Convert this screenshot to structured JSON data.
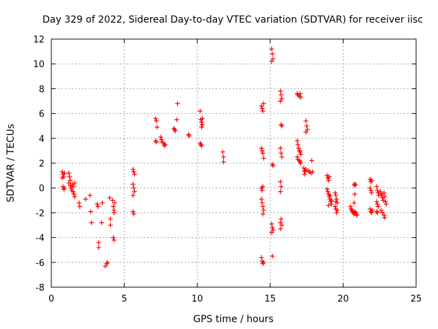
{
  "chart_data": {
    "type": "scatter",
    "title": "Day 329 of 2022, Sidereal Day-to-day VTEC variation (SDTVAR) for receiver iisc",
    "xlabel": "GPS time / hours",
    "ylabel": "SDTVAR / TECUs",
    "xlim": [
      0,
      25
    ],
    "ylim": [
      -8,
      12
    ],
    "xticks": [
      0,
      5,
      10,
      15,
      20,
      25
    ],
    "yticks": [
      -8,
      -6,
      -4,
      -2,
      0,
      2,
      4,
      6,
      8,
      10,
      12
    ],
    "grid": true,
    "marker": "+",
    "marker_color": "#ff0000",
    "series": [
      {
        "name": "SDTVAR",
        "points": [
          [
            0.75,
            1.3
          ],
          [
            0.8,
            1.1
          ],
          [
            0.85,
            0.9
          ],
          [
            0.75,
            0.8
          ],
          [
            0.9,
            1.2
          ],
          [
            0.8,
            0.1
          ],
          [
            0.85,
            -0.1
          ],
          [
            0.9,
            0.0
          ],
          [
            1.2,
            1.2
          ],
          [
            1.25,
            0.9
          ],
          [
            1.3,
            0.6
          ],
          [
            1.2,
            0.4
          ],
          [
            1.3,
            0.2
          ],
          [
            1.35,
            0.0
          ],
          [
            1.4,
            -0.2
          ],
          [
            1.45,
            0.3
          ],
          [
            1.5,
            0.1
          ],
          [
            1.5,
            -0.3
          ],
          [
            1.55,
            -0.5
          ],
          [
            1.6,
            -0.7
          ],
          [
            1.6,
            0.4
          ],
          [
            1.9,
            -1.2
          ],
          [
            1.95,
            -1.5
          ],
          [
            2.35,
            -0.9
          ],
          [
            2.65,
            -0.6
          ],
          [
            2.7,
            -1.9
          ],
          [
            2.75,
            -2.8
          ],
          [
            3.15,
            -1.3
          ],
          [
            3.2,
            -1.5
          ],
          [
            3.25,
            -4.4
          ],
          [
            3.25,
            -4.8
          ],
          [
            3.45,
            -2.8
          ],
          [
            3.5,
            -1.2
          ],
          [
            3.7,
            -6.3
          ],
          [
            3.8,
            -6.1
          ],
          [
            3.85,
            -6.0
          ],
          [
            4.0,
            -0.8
          ],
          [
            4.05,
            -2.5
          ],
          [
            4.05,
            -3.0
          ],
          [
            4.2,
            -1.0
          ],
          [
            4.25,
            -1.5
          ],
          [
            4.3,
            -1.8
          ],
          [
            4.3,
            -2.0
          ],
          [
            4.25,
            -4.0
          ],
          [
            4.3,
            -4.2
          ],
          [
            4.35,
            -1.2
          ],
          [
            5.6,
            1.5
          ],
          [
            5.65,
            1.3
          ],
          [
            5.7,
            1.1
          ],
          [
            5.6,
            0.3
          ],
          [
            5.65,
            0.0
          ],
          [
            5.7,
            -0.3
          ],
          [
            5.6,
            -0.6
          ],
          [
            5.6,
            -1.9
          ],
          [
            5.65,
            -2.1
          ],
          [
            7.15,
            5.6
          ],
          [
            7.2,
            5.4
          ],
          [
            7.25,
            4.9
          ],
          [
            7.15,
            3.8
          ],
          [
            7.2,
            3.7
          ],
          [
            7.5,
            4.1
          ],
          [
            7.55,
            3.9
          ],
          [
            7.6,
            3.7
          ],
          [
            7.7,
            3.6
          ],
          [
            7.75,
            3.4
          ],
          [
            7.8,
            3.5
          ],
          [
            8.4,
            4.8
          ],
          [
            8.45,
            4.7
          ],
          [
            8.5,
            4.6
          ],
          [
            8.6,
            5.5
          ],
          [
            8.65,
            6.8
          ],
          [
            9.4,
            4.3
          ],
          [
            9.45,
            4.2
          ],
          [
            10.2,
            6.2
          ],
          [
            10.25,
            5.5
          ],
          [
            10.3,
            5.3
          ],
          [
            10.35,
            5.1
          ],
          [
            10.3,
            4.9
          ],
          [
            10.35,
            5.6
          ],
          [
            10.2,
            3.6
          ],
          [
            10.25,
            3.5
          ],
          [
            10.3,
            3.4
          ],
          [
            11.75,
            2.9
          ],
          [
            11.8,
            2.5
          ],
          [
            11.8,
            2.1
          ],
          [
            14.4,
            6.6
          ],
          [
            14.45,
            6.4
          ],
          [
            14.5,
            6.2
          ],
          [
            14.55,
            6.8
          ],
          [
            14.4,
            3.2
          ],
          [
            14.45,
            3.0
          ],
          [
            14.5,
            2.8
          ],
          [
            14.55,
            2.4
          ],
          [
            14.4,
            0.0
          ],
          [
            14.45,
            -0.2
          ],
          [
            14.5,
            0.1
          ],
          [
            14.4,
            -0.9
          ],
          [
            14.45,
            -1.2
          ],
          [
            14.5,
            -1.5
          ],
          [
            14.55,
            -1.8
          ],
          [
            14.5,
            -2.1
          ],
          [
            14.4,
            -5.6
          ],
          [
            14.45,
            -5.9
          ],
          [
            14.5,
            -6.1
          ],
          [
            14.55,
            -6.0
          ],
          [
            15.1,
            11.2
          ],
          [
            15.15,
            10.8
          ],
          [
            15.2,
            10.4
          ],
          [
            15.1,
            10.2
          ],
          [
            15.15,
            1.9
          ],
          [
            15.2,
            1.8
          ],
          [
            15.1,
            -2.9
          ],
          [
            15.15,
            -3.2
          ],
          [
            15.2,
            -3.4
          ],
          [
            15.1,
            -3.6
          ],
          [
            15.15,
            -5.5
          ],
          [
            15.7,
            7.8
          ],
          [
            15.75,
            7.5
          ],
          [
            15.8,
            7.2
          ],
          [
            15.7,
            7.0
          ],
          [
            15.75,
            5.1
          ],
          [
            15.8,
            5.0
          ],
          [
            15.7,
            3.2
          ],
          [
            15.75,
            2.8
          ],
          [
            15.8,
            2.5
          ],
          [
            15.7,
            0.5
          ],
          [
            15.75,
            0.1
          ],
          [
            15.7,
            -0.3
          ],
          [
            15.75,
            -2.5
          ],
          [
            15.7,
            -2.8
          ],
          [
            15.8,
            -3.0
          ],
          [
            15.7,
            -3.3
          ],
          [
            16.85,
            7.6
          ],
          [
            16.9,
            7.5
          ],
          [
            17.0,
            7.4
          ],
          [
            17.05,
            7.6
          ],
          [
            17.1,
            7.3
          ],
          [
            16.85,
            3.8
          ],
          [
            16.9,
            3.5
          ],
          [
            16.95,
            3.2
          ],
          [
            17.0,
            3.0
          ],
          [
            17.05,
            2.9
          ],
          [
            17.1,
            2.7
          ],
          [
            16.85,
            2.5
          ],
          [
            16.9,
            2.3
          ],
          [
            17.0,
            2.2
          ],
          [
            17.05,
            2.1
          ],
          [
            17.1,
            2.0
          ],
          [
            17.3,
            1.6
          ],
          [
            17.35,
            1.4
          ],
          [
            17.4,
            1.3
          ],
          [
            17.45,
            1.5
          ],
          [
            17.35,
            1.1
          ],
          [
            17.45,
            5.4
          ],
          [
            17.5,
            5.0
          ],
          [
            17.55,
            4.7
          ],
          [
            17.45,
            4.5
          ],
          [
            17.6,
            1.4
          ],
          [
            17.7,
            1.3
          ],
          [
            17.8,
            1.2
          ],
          [
            17.85,
            2.2
          ],
          [
            17.9,
            1.3
          ],
          [
            18.9,
            1.0
          ],
          [
            18.95,
            0.8
          ],
          [
            19.0,
            0.6
          ],
          [
            19.05,
            0.9
          ],
          [
            18.9,
            -0.1
          ],
          [
            18.95,
            -0.3
          ],
          [
            19.0,
            -0.5
          ],
          [
            19.05,
            -0.7
          ],
          [
            19.1,
            -0.9
          ],
          [
            19.15,
            -1.1
          ],
          [
            19.2,
            -1.3
          ],
          [
            19.0,
            -1.4
          ],
          [
            19.1,
            -0.6
          ],
          [
            19.2,
            -1.0
          ],
          [
            19.45,
            -0.4
          ],
          [
            19.5,
            -0.6
          ],
          [
            19.55,
            -0.9
          ],
          [
            19.6,
            -1.2
          ],
          [
            19.45,
            -1.5
          ],
          [
            19.5,
            -1.7
          ],
          [
            19.55,
            -2.0
          ],
          [
            19.6,
            -1.8
          ],
          [
            19.5,
            -1.1
          ],
          [
            20.5,
            -1.5
          ],
          [
            20.55,
            -1.7
          ],
          [
            20.6,
            -1.8
          ],
          [
            20.65,
            -1.9
          ],
          [
            20.7,
            -2.0
          ],
          [
            20.75,
            -2.1
          ],
          [
            20.8,
            -1.9
          ],
          [
            20.85,
            -2.0
          ],
          [
            20.9,
            -2.1
          ],
          [
            20.95,
            -2.2
          ],
          [
            20.75,
            0.3
          ],
          [
            20.8,
            0.2
          ],
          [
            20.85,
            0.3
          ],
          [
            20.8,
            -0.5
          ],
          [
            20.75,
            -1.2
          ],
          [
            21.85,
            0.7
          ],
          [
            21.9,
            0.5
          ],
          [
            21.95,
            0.6
          ],
          [
            21.85,
            0.0
          ],
          [
            21.9,
            -0.2
          ],
          [
            21.95,
            -0.4
          ],
          [
            21.85,
            -1.7
          ],
          [
            21.9,
            -1.9
          ],
          [
            21.95,
            -2.0
          ],
          [
            22.0,
            -1.8
          ],
          [
            22.3,
            0.1
          ],
          [
            22.35,
            -0.2
          ],
          [
            22.4,
            -0.4
          ],
          [
            22.45,
            -0.6
          ],
          [
            22.3,
            -1.1
          ],
          [
            22.35,
            -1.3
          ],
          [
            22.4,
            -1.5
          ],
          [
            22.3,
            -1.9
          ],
          [
            22.35,
            -2.0
          ],
          [
            22.55,
            -0.3
          ],
          [
            22.6,
            -0.6
          ],
          [
            22.65,
            -0.5
          ],
          [
            22.7,
            -0.8
          ],
          [
            22.75,
            -1.0
          ],
          [
            22.8,
            -0.4
          ],
          [
            22.85,
            -0.7
          ],
          [
            22.9,
            -1.1
          ],
          [
            22.95,
            -1.3
          ],
          [
            22.6,
            -1.8
          ],
          [
            22.7,
            -2.0
          ],
          [
            22.8,
            -2.2
          ],
          [
            22.85,
            -2.4
          ]
        ]
      }
    ]
  }
}
